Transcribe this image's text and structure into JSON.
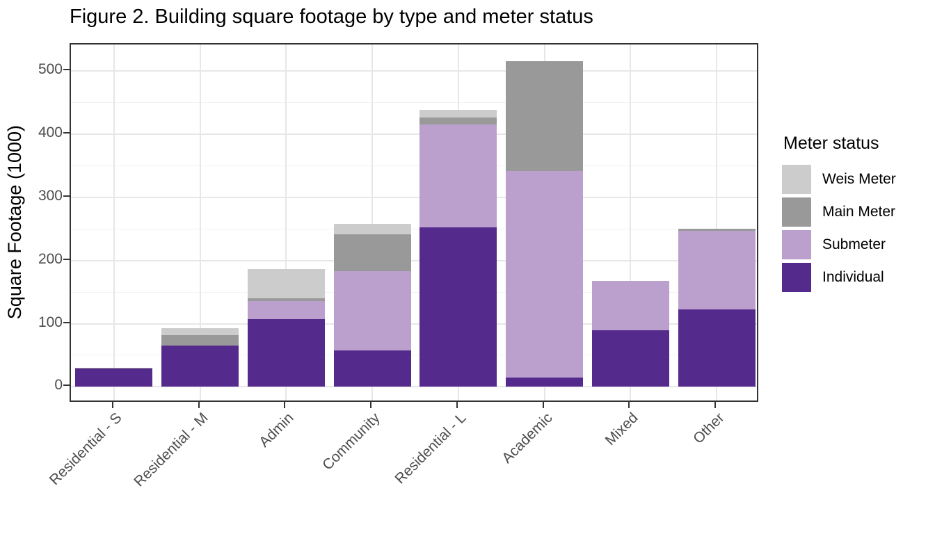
{
  "chart_data": {
    "type": "bar",
    "stacked": true,
    "title": "Figure 2. Building square footage by type and meter status",
    "xlabel": "",
    "ylabel": "Square Footage (1000)",
    "categories": [
      "Residential - S",
      "Residential - M",
      "Admin",
      "Community",
      "Residential - L",
      "Academic",
      "Mixed",
      "Other"
    ],
    "series": [
      {
        "name": "Individual",
        "color": "#542b8d",
        "values": [
          29,
          65,
          107,
          58,
          253,
          15,
          90,
          123
        ]
      },
      {
        "name": "Submeter",
        "color": "#bba0ce",
        "values": [
          0,
          0,
          29,
          125,
          162,
          327,
          78,
          124
        ]
      },
      {
        "name": "Main Meter",
        "color": "#999999",
        "values": [
          1,
          17,
          4,
          58,
          11,
          174,
          0,
          3
        ]
      },
      {
        "name": "Weis Meter",
        "color": "#cccccc",
        "values": [
          0,
          11,
          47,
          17,
          12,
          0,
          0,
          0
        ]
      }
    ],
    "stack_order_bottom_to_top": [
      "Individual",
      "Submeter",
      "Main Meter",
      "Weis Meter"
    ],
    "bar_totals": [
      30,
      93,
      187,
      258,
      438,
      516,
      168,
      250
    ],
    "ylim": [
      -26,
      542
    ],
    "yticks": [
      0,
      100,
      200,
      300,
      400,
      500
    ],
    "yticks_minor": [
      50,
      150,
      250,
      350,
      450
    ],
    "grid": true,
    "legend": {
      "title": "Meter status",
      "position": "right",
      "entries_top_to_bottom": [
        "Weis Meter",
        "Main Meter",
        "Submeter",
        "Individual"
      ]
    },
    "colors": {
      "panel_border": "#333333",
      "grid_major": "#e7e7e7",
      "grid_minor": "#f2f2f2",
      "tick_mark": "#333333",
      "tick_label": "#4d4d4d",
      "title_text": "#000000",
      "background": "#ffffff"
    }
  }
}
